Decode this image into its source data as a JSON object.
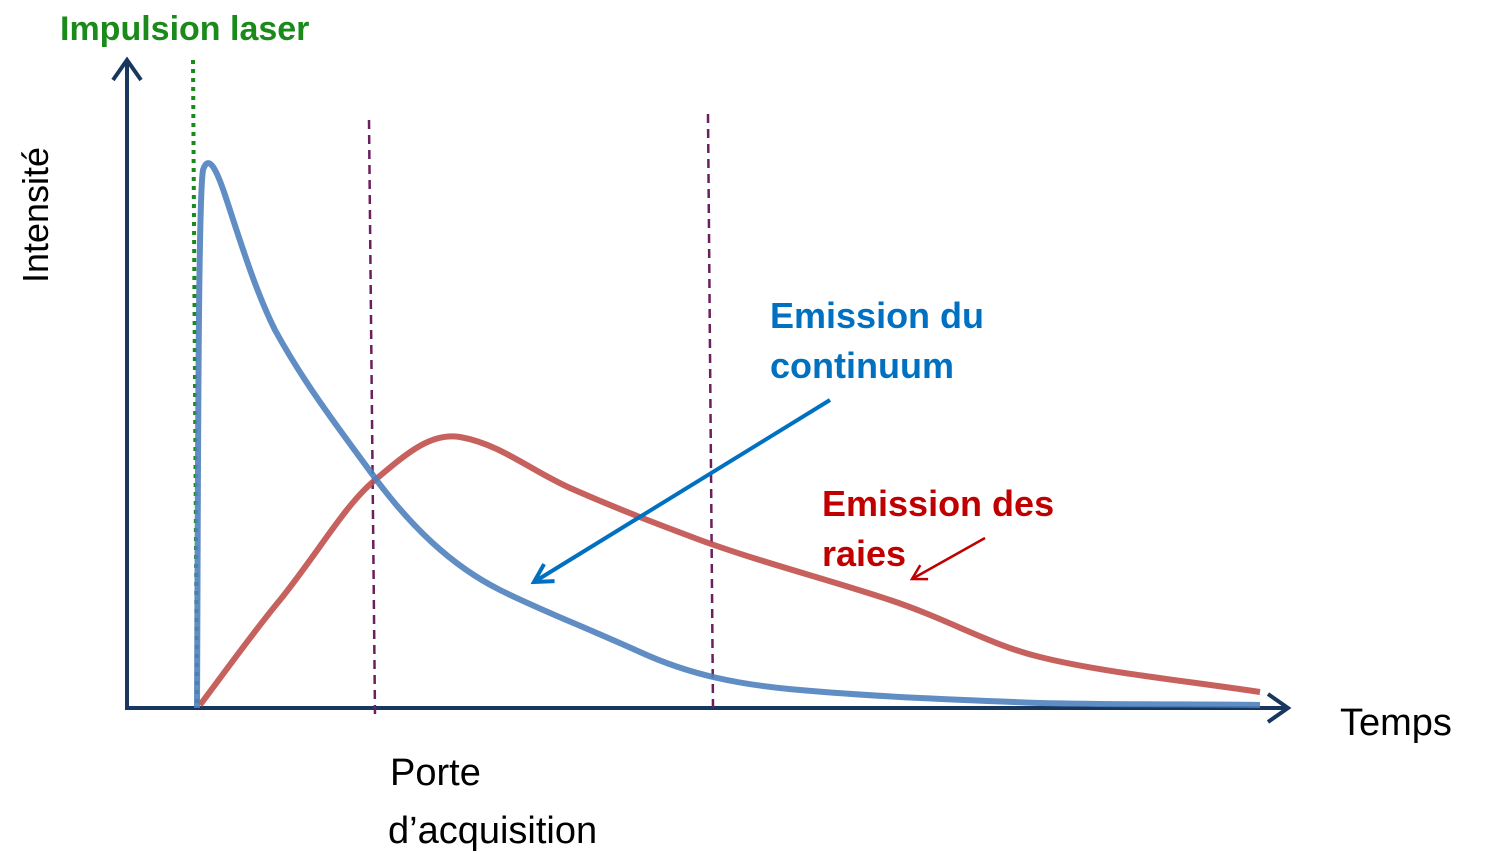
{
  "labels": {
    "pulse": "Impulsion laser",
    "y_axis": "Intensité",
    "x_axis": "Temps",
    "continuum": [
      "Emission du",
      "continuum"
    ],
    "lines": [
      "Emission des",
      "raies"
    ],
    "gate": [
      "Porte",
      "d’acquisition"
    ]
  }
}
